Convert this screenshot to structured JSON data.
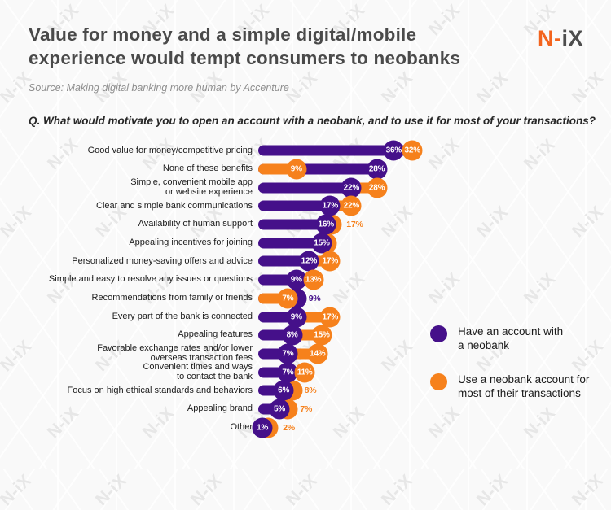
{
  "header": {
    "title": "Value for money and a simple digital/mobile\nexperience would tempt consumers to neobanks",
    "logo_orange": "N-",
    "logo_dark": "iX",
    "source": "Source: Making digital banking more human by Accenture",
    "question": "Q. What would motivate you to open an account with a neobank, and to use it for most of your transactions?"
  },
  "watermark": {
    "text": "N-iX"
  },
  "colors": {
    "purple": "#45108a",
    "orange": "#f6811c"
  },
  "legend": [
    {
      "series": "have",
      "label": "Have an account with\na neobank"
    },
    {
      "series": "use",
      "label": "Use a neobank account for\nmost of their transactions"
    }
  ],
  "chart_data": {
    "type": "bar",
    "orientation": "horizontal",
    "unit": "%",
    "legend_position": "right",
    "grid": false,
    "series": [
      {
        "name": "Have an account with a neobank",
        "color": "#45108a"
      },
      {
        "name": "Use a neobank account for most of their transactions",
        "color": "#f6811c"
      }
    ],
    "rows": [
      {
        "label": "Good value for money/competitive pricing",
        "have": 36,
        "use": 32,
        "variant": "swap"
      },
      {
        "label": "None of these benefits",
        "have": 28,
        "use": 9,
        "variant": "desc"
      },
      {
        "label": "Simple, convenient mobile app\nor website experience",
        "have": 22,
        "use": 28,
        "variant": "asc"
      },
      {
        "label": "Clear and simple bank communications",
        "have": 17,
        "use": 22,
        "variant": "asc"
      },
      {
        "label": "Availability of human support",
        "have": 16,
        "use": 17,
        "variant": "asc-out"
      },
      {
        "label": "Appealing incentives for joining",
        "have": 15,
        "use": null,
        "variant": "hidden"
      },
      {
        "label": "Personalized money-saving offers and advice",
        "have": 12,
        "use": 17,
        "variant": "asc"
      },
      {
        "label": "Simple and easy to resolve any issues or questions",
        "have": 9,
        "use": 13,
        "variant": "asc"
      },
      {
        "label": "Recommendations from family or friends",
        "have": 9,
        "use": 7,
        "variant": "desc-out"
      },
      {
        "label": "Every part of the bank is connected",
        "have": 9,
        "use": 17,
        "variant": "asc"
      },
      {
        "label": "Appealing features",
        "have": 8,
        "use": 15,
        "variant": "asc"
      },
      {
        "label": "Favorable exchange rates and/or lower\noverseas transaction fees",
        "have": 7,
        "use": 14,
        "variant": "asc"
      },
      {
        "label": "Convenient times and ways\nto contact the bank",
        "have": 7,
        "use": 11,
        "variant": "asc"
      },
      {
        "label": "Focus on high ethical standards and behaviors",
        "have": 6,
        "use": 8,
        "variant": "asc-out"
      },
      {
        "label": "Appealing brand",
        "have": 5,
        "use": 7,
        "variant": "asc-out"
      },
      {
        "label": "Other",
        "have": 1,
        "use": 2,
        "variant": "asc-out"
      }
    ]
  }
}
